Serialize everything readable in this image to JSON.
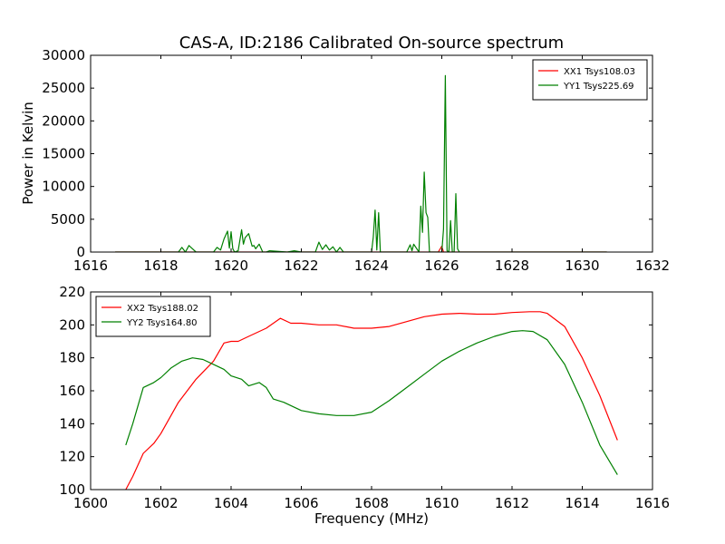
{
  "chart_data": [
    {
      "type": "line",
      "title": "CAS-A, ID:2186 Calibrated On-source spectrum",
      "xlabel": "",
      "ylabel": "Power in Kelvin",
      "xlim": [
        1616,
        1632
      ],
      "ylim": [
        0,
        30000
      ],
      "xticks": [
        1616,
        1618,
        1620,
        1622,
        1624,
        1626,
        1628,
        1630,
        1632
      ],
      "yticks": [
        0,
        5000,
        10000,
        15000,
        20000,
        25000,
        30000
      ],
      "legend_position": "top-right",
      "grid": false,
      "series": [
        {
          "name": "XX1 Tsys108.03",
          "color": "#ff0000",
          "x": [
            1616.7,
            1625.9,
            1626.0,
            1626.05,
            1630.7
          ],
          "y": [
            0,
            0,
            900,
            0,
            0
          ]
        },
        {
          "name": "YY1 Tsys225.69",
          "color": "#008000",
          "x": [
            1616.7,
            1618.5,
            1618.6,
            1618.7,
            1618.8,
            1618.9,
            1619.0,
            1619.5,
            1619.6,
            1619.7,
            1619.8,
            1619.9,
            1619.95,
            1620.0,
            1620.05,
            1620.1,
            1620.2,
            1620.3,
            1620.35,
            1620.4,
            1620.5,
            1620.6,
            1620.65,
            1620.7,
            1620.8,
            1620.9,
            1621.0,
            1621.1,
            1621.6,
            1621.8,
            1622.0,
            1622.4,
            1622.5,
            1622.6,
            1622.7,
            1622.8,
            1622.9,
            1623.0,
            1623.1,
            1623.2,
            1623.5,
            1624.0,
            1624.05,
            1624.1,
            1624.15,
            1624.2,
            1624.25,
            1625.0,
            1625.1,
            1625.15,
            1625.2,
            1625.35,
            1625.4,
            1625.45,
            1625.5,
            1625.55,
            1625.6,
            1625.65,
            1625.7,
            1626.0,
            1626.05,
            1626.1,
            1626.15,
            1626.2,
            1626.25,
            1626.3,
            1626.35,
            1626.4,
            1626.45,
            1626.5,
            1626.55,
            1627.0,
            1630.7
          ],
          "y": [
            0,
            0,
            700,
            0,
            1000,
            500,
            0,
            0,
            700,
            300,
            2000,
            3200,
            600,
            3100,
            500,
            0,
            200,
            3400,
            1200,
            2200,
            2800,
            900,
            1000,
            500,
            1200,
            0,
            0,
            200,
            0,
            200,
            0,
            0,
            1500,
            400,
            1100,
            300,
            800,
            0,
            700,
            0,
            0,
            0,
            2300,
            6400,
            300,
            6000,
            0,
            0,
            1100,
            200,
            1200,
            0,
            7000,
            3000,
            12200,
            6000,
            5300,
            0,
            0,
            0,
            3500,
            26900,
            200,
            0,
            4800,
            0,
            0,
            8900,
            500,
            0,
            0,
            0,
            0
          ]
        }
      ]
    },
    {
      "type": "line",
      "title": "",
      "xlabel": "Frequency (MHz)",
      "ylabel": "",
      "xlim": [
        1600,
        1616
      ],
      "ylim": [
        100,
        220
      ],
      "xticks": [
        1600,
        1602,
        1604,
        1606,
        1608,
        1610,
        1612,
        1614,
        1616
      ],
      "yticks": [
        100,
        120,
        140,
        160,
        180,
        200,
        220
      ],
      "legend_position": "top-left",
      "grid": false,
      "series": [
        {
          "name": "XX2 Tsys188.02",
          "color": "#ff0000",
          "x": [
            1601.0,
            1601.2,
            1601.5,
            1601.8,
            1602.0,
            1602.5,
            1603.0,
            1603.5,
            1603.8,
            1604.0,
            1604.2,
            1604.5,
            1605.0,
            1605.4,
            1605.7,
            1606.0,
            1606.5,
            1607.0,
            1607.5,
            1608.0,
            1608.5,
            1609.0,
            1609.5,
            1610.0,
            1610.5,
            1611.0,
            1611.5,
            1612.0,
            1612.5,
            1612.8,
            1613.0,
            1613.5,
            1614.0,
            1614.5,
            1615.0
          ],
          "y": [
            100,
            108,
            122,
            128,
            134,
            153,
            167,
            178,
            189,
            190,
            190,
            193,
            198,
            204,
            201,
            201,
            200,
            200,
            198,
            198,
            199,
            202,
            205,
            206.5,
            207,
            206.5,
            206.5,
            207.5,
            208,
            208,
            207,
            199,
            180,
            157,
            130
          ]
        },
        {
          "name": "YY2 Tsys164.80",
          "color": "#008000",
          "x": [
            1601.0,
            1601.2,
            1601.5,
            1601.8,
            1602.0,
            1602.3,
            1602.6,
            1602.9,
            1603.2,
            1603.5,
            1603.8,
            1604.0,
            1604.3,
            1604.5,
            1604.8,
            1605.0,
            1605.2,
            1605.5,
            1606.0,
            1606.5,
            1607.0,
            1607.5,
            1608.0,
            1608.5,
            1609.0,
            1609.5,
            1610.0,
            1610.5,
            1611.0,
            1611.5,
            1612.0,
            1612.3,
            1612.6,
            1613.0,
            1613.5,
            1614.0,
            1614.5,
            1615.0
          ],
          "y": [
            127,
            140,
            162,
            165,
            168,
            174,
            178,
            180,
            179,
            176,
            173,
            169,
            167,
            163,
            165,
            162,
            155,
            153,
            148,
            146,
            145,
            145,
            147,
            154,
            162,
            170,
            178,
            184,
            189,
            193,
            196,
            196.5,
            196,
            191,
            176,
            153,
            127,
            109
          ]
        }
      ]
    }
  ]
}
